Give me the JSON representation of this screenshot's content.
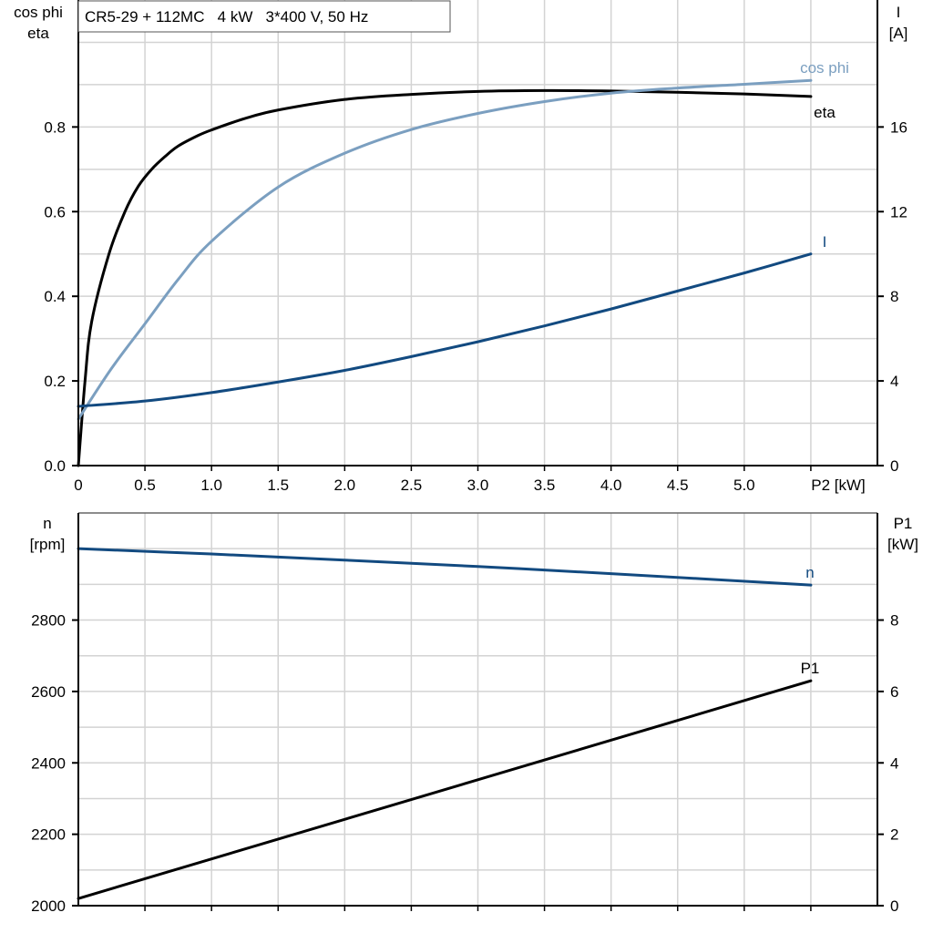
{
  "chart_data": [
    {
      "type": "line",
      "title": "CR5-29 + 112MC   4 kW   3*400 V, 50 Hz",
      "xlabel": "P2 [kW]",
      "ylabel_left": [
        "cos phi",
        "eta"
      ],
      "ylabel_right": [
        "I",
        "[A]"
      ],
      "xlim": [
        0,
        6.0
      ],
      "ylim_left": [
        0,
        1.1
      ],
      "ylim_right": [
        0,
        22
      ],
      "grid": true,
      "xticks": [
        "0",
        "0.5",
        "1.0",
        "1.5",
        "2.0",
        "2.5",
        "3.0",
        "3.5",
        "4.0",
        "4.5",
        "5.0"
      ],
      "yticks_left": [
        "0.0",
        "0.2",
        "0.4",
        "0.6",
        "0.8"
      ],
      "yticks_right": [
        "0",
        "4",
        "8",
        "12",
        "16"
      ],
      "series": [
        {
          "name": "eta",
          "axis": "left",
          "color": "#000000",
          "x": [
            0,
            0.05,
            0.1,
            0.23,
            0.35,
            0.45,
            0.55,
            0.65,
            0.75,
            0.9,
            1.0,
            1.25,
            1.5,
            2.0,
            2.5,
            3.0,
            3.5,
            4.0,
            4.5,
            5.0,
            5.5
          ],
          "y": [
            0,
            0.2,
            0.34,
            0.5,
            0.6,
            0.66,
            0.7,
            0.73,
            0.755,
            0.78,
            0.793,
            0.82,
            0.84,
            0.865,
            0.877,
            0.884,
            0.886,
            0.885,
            0.882,
            0.878,
            0.872
          ]
        },
        {
          "name": "cos phi",
          "axis": "left",
          "color": "#7b9fc0",
          "x": [
            0,
            0.25,
            0.5,
            0.75,
            1.0,
            1.5,
            2.0,
            2.5,
            3.0,
            3.5,
            4.0,
            4.5,
            5.0,
            5.5
          ],
          "y": [
            0.11,
            0.23,
            0.335,
            0.44,
            0.53,
            0.658,
            0.738,
            0.794,
            0.832,
            0.86,
            0.88,
            0.892,
            0.901,
            0.91
          ]
        },
        {
          "name": "I",
          "axis": "right",
          "color": "#124a80",
          "x": [
            0,
            0.5,
            1.0,
            1.5,
            2.0,
            2.5,
            3.0,
            3.5,
            4.0,
            4.5,
            5.0,
            5.5
          ],
          "y": [
            2.8,
            3.05,
            3.45,
            3.95,
            4.5,
            5.15,
            5.85,
            6.6,
            7.4,
            8.25,
            9.1,
            10.0
          ]
        }
      ]
    },
    {
      "type": "line",
      "xlim": [
        0,
        6.0
      ],
      "ylabel_left": [
        "n",
        "[rpm]"
      ],
      "ylabel_right": [
        "P1",
        "[kW]"
      ],
      "ylim_left": [
        2000,
        3100
      ],
      "ylim_right": [
        0,
        11
      ],
      "grid": true,
      "yticks_left": [
        "2000",
        "2200",
        "2400",
        "2600",
        "2800"
      ],
      "yticks_right": [
        "0",
        "2",
        "4",
        "6",
        "8"
      ],
      "series": [
        {
          "name": "n",
          "axis": "left",
          "color": "#124a80",
          "x": [
            0,
            1.0,
            2.0,
            3.0,
            4.0,
            5.5
          ],
          "y": [
            3000,
            2985,
            2968,
            2950,
            2930,
            2898
          ]
        },
        {
          "name": "P1",
          "axis": "right",
          "color": "#000000",
          "x": [
            0,
            5.5
          ],
          "y": [
            0.2,
            6.3
          ]
        }
      ]
    }
  ]
}
